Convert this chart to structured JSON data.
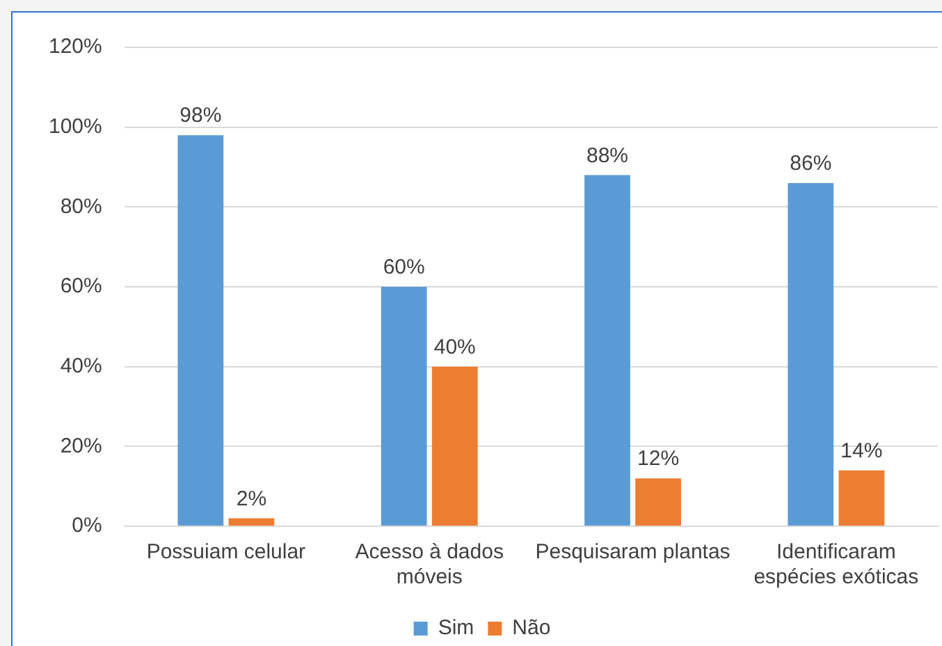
{
  "chart_data": {
    "type": "bar",
    "categories": [
      "Possuiam celular",
      "Acesso à dados móveis",
      "Pesquisaram plantas",
      "Identificaram espécies exóticas"
    ],
    "series": [
      {
        "name": "Sim",
        "color": "#5b9bd5",
        "values": [
          98,
          60,
          88,
          86
        ],
        "value_labels": [
          "98%",
          "60%",
          "88%",
          "86%"
        ]
      },
      {
        "name": "Não",
        "color": "#ed7d31",
        "values": [
          2,
          40,
          12,
          14
        ],
        "value_labels": [
          "2%",
          "40%",
          "12%",
          "14%"
        ]
      }
    ],
    "ylim": [
      0,
      120
    ],
    "yticks": [
      {
        "value": 0,
        "label": "0%"
      },
      {
        "value": 20,
        "label": "20%"
      },
      {
        "value": 40,
        "label": "40%"
      },
      {
        "value": 60,
        "label": "60%"
      },
      {
        "value": 80,
        "label": "80%"
      },
      {
        "value": 100,
        "label": "100%"
      },
      {
        "value": 120,
        "label": "120%"
      }
    ],
    "grid": "y",
    "legend": "bottom"
  }
}
